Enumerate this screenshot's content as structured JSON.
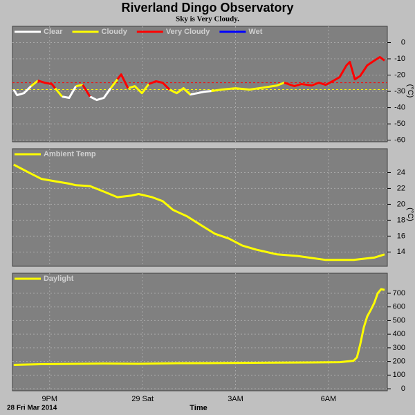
{
  "chart_data": [
    {
      "type": "line",
      "title": "Riverland Dingo Observatory",
      "subtitle": "Sky is Very Cloudy.",
      "y_label": "(°C)",
      "x": [
        19.84,
        19.95,
        20.17,
        20.4,
        20.62,
        20.84,
        21.07,
        21.18,
        21.4,
        21.63,
        21.85,
        22.07,
        22.3,
        22.52,
        22.75,
        22.97,
        23.19,
        23.31,
        23.53,
        23.75,
        23.98,
        24.2,
        24.43,
        24.65,
        24.87,
        25.1,
        25.32,
        25.54,
        25.77,
        25.99,
        26.22,
        26.55,
        27.0,
        27.45,
        27.9,
        28.34,
        28.57,
        28.9,
        29.13,
        29.46,
        29.69,
        29.91,
        30.13,
        30.36,
        30.58,
        30.69,
        30.85,
        31.03,
        31.25,
        31.48,
        31.66,
        31.81
      ],
      "series": [
        {
          "name": "Clear",
          "color": "#ffffff",
          "values": [
            -28.9,
            -32.3,
            -31.1,
            -26.8,
            null,
            null,
            null,
            null,
            -33.2,
            -34.0,
            -26.8,
            null,
            -33.2,
            -35.3,
            -34.0,
            -28.1,
            null,
            null,
            null,
            null,
            null,
            null,
            null,
            null,
            null,
            -31.1,
            -28.1,
            -31.9,
            -31.1,
            -30.2,
            -29.8,
            null,
            null,
            null,
            null,
            null,
            null,
            null,
            null,
            null,
            null,
            null,
            null,
            null,
            null,
            null,
            null,
            null,
            null,
            null,
            null,
            null
          ]
        },
        {
          "name": "Cloudy",
          "color": "#ffff00",
          "values": [
            null,
            null,
            null,
            -26.8,
            -23.4,
            null,
            null,
            -28.1,
            -33.2,
            null,
            -26.8,
            -26.0,
            null,
            null,
            null,
            -28.1,
            -22.6,
            null,
            -28.1,
            -26.8,
            -31.1,
            -25.5,
            null,
            null,
            -28.9,
            -31.1,
            -28.1,
            -31.9,
            null,
            null,
            -29.8,
            -28.9,
            -28.1,
            -28.9,
            -27.7,
            -26.4,
            -24.7,
            -26.8,
            -25.5,
            -26.4,
            -24.7,
            null,
            null,
            null,
            null,
            null,
            null,
            null,
            null,
            null,
            null,
            null
          ]
        },
        {
          "name": "Very Cloudy",
          "color": "#ff0000",
          "values": [
            null,
            null,
            null,
            null,
            -23.4,
            -24.7,
            -25.5,
            -28.1,
            null,
            null,
            null,
            -26.0,
            -33.2,
            null,
            null,
            null,
            -22.6,
            -19.6,
            -28.1,
            null,
            null,
            -25.5,
            -23.8,
            -24.7,
            -28.9,
            null,
            null,
            null,
            null,
            null,
            null,
            null,
            null,
            null,
            null,
            null,
            -24.7,
            -26.8,
            -25.5,
            -26.4,
            -24.7,
            -26.0,
            -23.8,
            -21.3,
            -14.0,
            -11.9,
            -22.6,
            -20.4,
            -14.0,
            -11.1,
            -8.9,
            -11.1
          ]
        },
        {
          "name": "Wet",
          "color": "#0000ff",
          "values": [
            null,
            null,
            null,
            null,
            null,
            null,
            null,
            null,
            null,
            null,
            null,
            null,
            null,
            null,
            null,
            null,
            null,
            null,
            null,
            null,
            null,
            null,
            null,
            null,
            null,
            null,
            null,
            null,
            null,
            null,
            null,
            null,
            null,
            null,
            null,
            null,
            null,
            null,
            null,
            null,
            null,
            null,
            null,
            null,
            null,
            null,
            null,
            null,
            null,
            null,
            null,
            null
          ]
        }
      ],
      "reference_lines": [
        {
          "value": -24.7,
          "color": "#ff0000"
        },
        {
          "value": -28.9,
          "color": "#ffff00"
        }
      ],
      "xlim": [
        19.8,
        31.9
      ],
      "ylim": [
        -61,
        10
      ],
      "yticks": [
        0,
        -10,
        -20,
        -30,
        -40,
        -50,
        -60
      ],
      "grid": true
    },
    {
      "type": "line",
      "y_label": "(°C)",
      "x": [
        19.84,
        20.28,
        20.73,
        21.18,
        21.63,
        21.85,
        22.3,
        22.75,
        23.19,
        23.64,
        23.87,
        24.31,
        24.65,
        24.98,
        25.43,
        25.88,
        26.33,
        26.78,
        27.22,
        27.67,
        28.34,
        29.01,
        29.91,
        30.81,
        31.48,
        31.81
      ],
      "series": [
        {
          "name": "Ambient Temp",
          "color": "#ffff00",
          "values": [
            25.0,
            24.1,
            23.2,
            22.9,
            22.6,
            22.4,
            22.3,
            21.6,
            20.9,
            21.1,
            21.3,
            20.9,
            20.4,
            19.3,
            18.5,
            17.4,
            16.3,
            15.7,
            14.8,
            14.3,
            13.7,
            13.5,
            13.0,
            13.0,
            13.3,
            13.7
          ]
        }
      ],
      "xlim": [
        19.8,
        31.9
      ],
      "ylim": [
        12.2,
        27
      ],
      "yticks": [
        24,
        22,
        20,
        18,
        16,
        14
      ],
      "grid": true
    },
    {
      "type": "line",
      "x_label": "Time",
      "date_label": "28 Fri Mar 2014",
      "x": [
        19.84,
        20.73,
        21.63,
        22.75,
        23.87,
        24.98,
        26.1,
        27.22,
        28.34,
        29.46,
        30.36,
        30.81,
        30.92,
        31.03,
        31.14,
        31.25,
        31.37,
        31.48,
        31.59,
        31.7,
        31.81
      ],
      "series": [
        {
          "name": "Daylight",
          "color": "#ffff00",
          "values": [
            175,
            180,
            182,
            185,
            183,
            187,
            188,
            190,
            192,
            193,
            195,
            205,
            230,
            330,
            450,
            530,
            580,
            630,
            700,
            730,
            725
          ]
        }
      ],
      "xlim": [
        19.8,
        31.9
      ],
      "ylim": [
        -15,
        847
      ],
      "yticks": [
        700,
        600,
        500,
        400,
        300,
        200,
        100,
        0
      ],
      "grid": true,
      "xticks": [
        {
          "value": 21,
          "label": "9PM"
        },
        {
          "value": 24,
          "label": "29 Sat"
        },
        {
          "value": 27,
          "label": "3AM"
        },
        {
          "value": 30,
          "label": "6AM"
        }
      ]
    }
  ]
}
